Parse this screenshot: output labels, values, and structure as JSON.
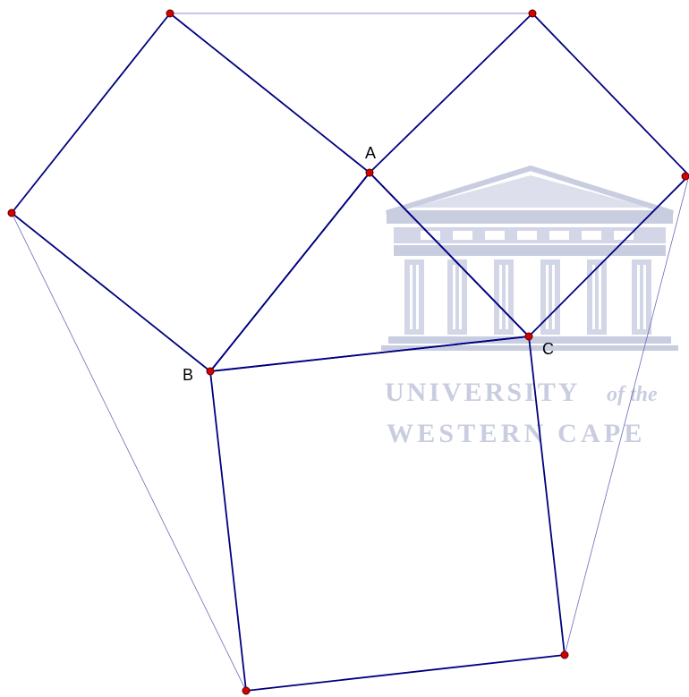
{
  "diagram": {
    "points": {
      "A": {
        "label": "A"
      },
      "B": {
        "label": "B"
      },
      "C": {
        "label": "C"
      }
    },
    "colors": {
      "edge": "#000080",
      "thin_edge": "#6b6bb8",
      "point_fill": "#d40000",
      "point_stroke": "#5a0000",
      "watermark": "#c9cde0"
    }
  },
  "watermark": {
    "line1": "UNIVERSITY",
    "line1_suffix": "of the",
    "line2": "WESTERN CAPE"
  }
}
